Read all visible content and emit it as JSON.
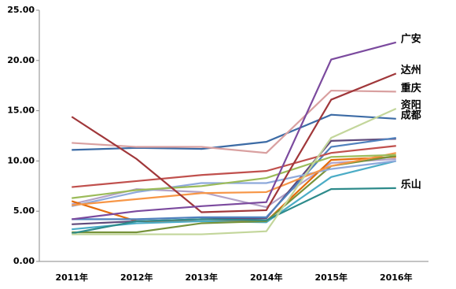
{
  "chart_data": {
    "type": "line",
    "categories": [
      "2011年",
      "2012年",
      "2013年",
      "2014年",
      "2015年",
      "2016年"
    ],
    "ylim": [
      0,
      25
    ],
    "yticks": [
      {
        "value": 0,
        "label": "0.00"
      },
      {
        "value": 5,
        "label": "5.00"
      },
      {
        "value": 10,
        "label": "10.00"
      },
      {
        "value": 15,
        "label": "15.00"
      },
      {
        "value": 20,
        "label": "20.00"
      },
      {
        "value": 25,
        "label": "25.00"
      }
    ],
    "series": [
      {
        "name": "广安",
        "color": "#7b4a9e",
        "values": [
          4.2,
          5.0,
          5.5,
          5.9,
          20.1,
          21.8
        ]
      },
      {
        "name": "达州",
        "color": "#a0373a",
        "values": [
          14.4,
          10.2,
          4.9,
          5.1,
          16.1,
          18.7
        ]
      },
      {
        "name": "重庆",
        "color": "#d9a0a0",
        "values": [
          11.8,
          11.4,
          11.4,
          10.8,
          17.0,
          16.9
        ]
      },
      {
        "name": "资阳",
        "color": "#c3d69b",
        "values": [
          2.7,
          2.7,
          2.7,
          3.0,
          12.3,
          15.2
        ]
      },
      {
        "name": "成都",
        "color": "#3c6ba5",
        "values": [
          11.1,
          11.3,
          11.2,
          11.9,
          14.6,
          14.2
        ]
      },
      {
        "name": "乐山",
        "color": "#2e8b8b",
        "values": [
          2.8,
          4.0,
          4.2,
          4.1,
          7.2,
          7.3
        ]
      },
      {
        "color": "#c0504d",
        "values": [
          7.4,
          8.0,
          8.6,
          9.0,
          10.8,
          11.5
        ]
      },
      {
        "color": "#9bbb59",
        "values": [
          6.3,
          7.1,
          7.5,
          8.3,
          10.4,
          10.6
        ]
      },
      {
        "color": "#f79646",
        "values": [
          5.6,
          6.2,
          6.8,
          6.9,
          9.5,
          10.8
        ]
      },
      {
        "color": "#8ea9db",
        "values": [
          5.5,
          6.9,
          7.8,
          7.8,
          9.2,
          10.0
        ]
      },
      {
        "color": "#4f81bd",
        "values": [
          4.2,
          4.2,
          4.4,
          4.4,
          11.4,
          12.3
        ]
      },
      {
        "color": "#604a7b",
        "values": [
          3.7,
          4.0,
          4.2,
          4.3,
          12.0,
          12.2
        ]
      },
      {
        "color": "#77933c",
        "values": [
          2.9,
          2.9,
          3.8,
          4.0,
          9.5,
          10.5
        ]
      },
      {
        "color": "#4bacc6",
        "values": [
          3.2,
          3.8,
          4.0,
          3.9,
          8.4,
          10.0
        ]
      },
      {
        "color": "#e46c0a",
        "values": [
          6.0,
          4.0,
          4.0,
          4.0,
          10.1,
          10.4
        ]
      },
      {
        "color": "#b3a2c7",
        "values": [
          5.7,
          7.2,
          6.9,
          5.4,
          9.8,
          10.2
        ]
      }
    ]
  }
}
